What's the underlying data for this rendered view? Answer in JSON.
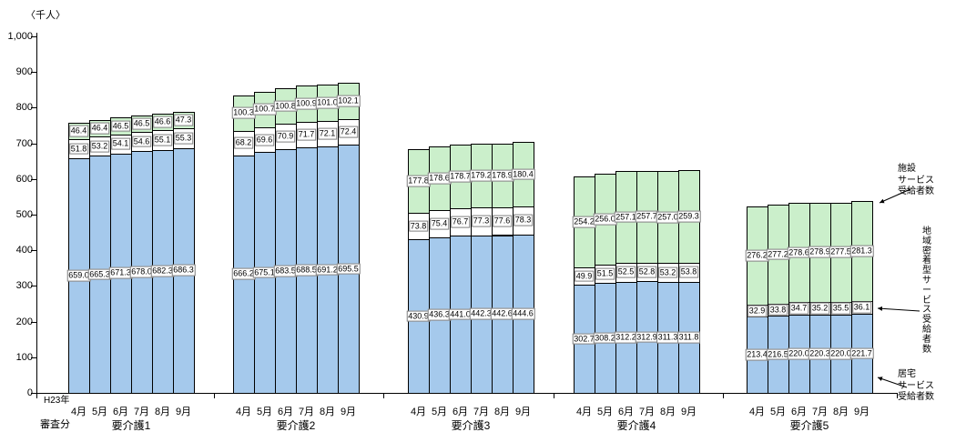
{
  "title": "〈千人〉",
  "axis": {
    "y_ticks": [
      0,
      100,
      200,
      300,
      400,
      500,
      600,
      700,
      800,
      900,
      1000
    ],
    "corner_top": "H23年",
    "corner_bottom": "審査分"
  },
  "legend": {
    "facility": "施設サービス受給者数",
    "facility_display": "施設\nサービス\n受給者数",
    "community": "地域密着型サービス受給者数",
    "home": "居宅サービス受給者数",
    "home_display": "居宅\nサービス\n受給者数"
  },
  "colors": {
    "home": "#A5C9EC",
    "community": "#FFFFFF",
    "facility": "#CBEFCB"
  },
  "chart_data": {
    "type": "bar",
    "stacked": true,
    "unit": "千人",
    "ylim": [
      0,
      1000
    ],
    "grid": false,
    "groups": [
      "要介護1",
      "要介護2",
      "要介護3",
      "要介護4",
      "要介護5"
    ],
    "months": [
      "4月",
      "5月",
      "6月",
      "7月",
      "8月",
      "9月"
    ],
    "series": [
      {
        "key": "home",
        "name": "居宅サービス受給者数",
        "values": [
          [
            659.0,
            665.3,
            671.3,
            678.0,
            682.3,
            686.3
          ],
          [
            666.2,
            675.1,
            683.5,
            688.5,
            691.2,
            695.5
          ],
          [
            430.9,
            436.3,
            441.0,
            442.3,
            442.6,
            444.6
          ],
          [
            302.7,
            308.2,
            312.2,
            312.9,
            311.3,
            311.8
          ],
          [
            213.4,
            216.5,
            220.0,
            220.3,
            220.0,
            221.7
          ]
        ]
      },
      {
        "key": "community",
        "name": "地域密着型サービス受給者数",
        "values": [
          [
            51.8,
            53.2,
            54.1,
            54.6,
            55.1,
            55.3
          ],
          [
            68.2,
            69.6,
            70.9,
            71.7,
            72.1,
            72.4
          ],
          [
            73.8,
            75.4,
            76.7,
            77.3,
            77.6,
            78.3
          ],
          [
            49.9,
            51.5,
            52.5,
            52.8,
            53.2,
            53.8
          ],
          [
            32.9,
            33.8,
            34.7,
            35.2,
            35.5,
            36.1
          ]
        ]
      },
      {
        "key": "facility",
        "name": "施設サービス受給者数",
        "values": [
          [
            46.4,
            46.4,
            46.5,
            46.5,
            46.6,
            47.3
          ],
          [
            100.3,
            100.7,
            100.8,
            100.9,
            101.0,
            102.1
          ],
          [
            177.8,
            178.6,
            178.7,
            179.2,
            178.9,
            180.4
          ],
          [
            254.2,
            256.0,
            257.1,
            257.7,
            257.0,
            259.3
          ],
          [
            276.2,
            277.2,
            278.6,
            278.9,
            277.5,
            281.3
          ]
        ]
      }
    ]
  }
}
